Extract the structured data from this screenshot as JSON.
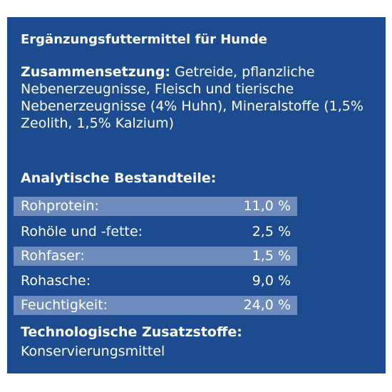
{
  "product_type": "Ergänzungsfuttermittel für Hunde",
  "composition": {
    "label": "Zusammensetzung:",
    "text": "Getreide, pflanzliche Nebenerzeugnisse, Fleisch und tierische Nebenerzeugnisse (4% Huhn), Mineralstoffe (1,5% Zeolith, 1,5% Kalzium)"
  },
  "analytical": {
    "heading": "Analytische Bestandteile:",
    "rows": [
      {
        "label": "Rohprotein:",
        "value": "11,0 %"
      },
      {
        "label": "Rohöle und -fette:",
        "value": "2,5 %"
      },
      {
        "label": "Rohfaser:",
        "value": "1,5 %"
      },
      {
        "label": "Rohasche:",
        "value": "9,0 %"
      },
      {
        "label": "Feuchtigkeit:",
        "value": "24,0 %"
      }
    ]
  },
  "additives": {
    "heading": "Technologische Zusatzstoffe:",
    "value": "Konservierungsmittel"
  },
  "colors": {
    "panel_background": "#1c4c8f",
    "row_highlight": "#6d8cbd",
    "text": "#ffffff"
  }
}
